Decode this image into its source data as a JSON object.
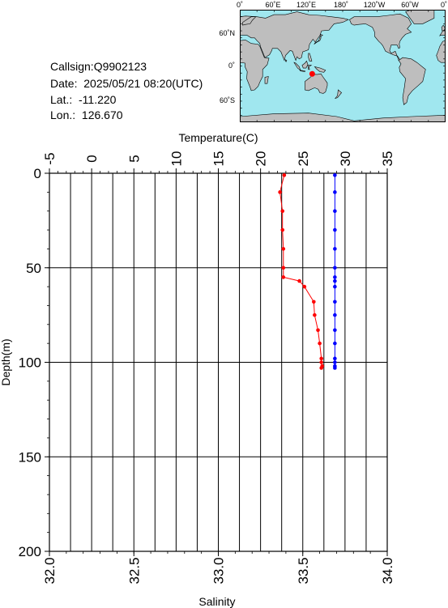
{
  "info": {
    "callsign": "Callsign:Q9902123",
    "date": "Date:  2025/05/21 08:20(UTC)",
    "lat": "Lat.:  -11.220",
    "lon": "Lon.:  126.670"
  },
  "map": {
    "top_labels": [
      "0˚",
      "60˚E",
      "120˚E",
      "180˚",
      "120˚W",
      "60˚W",
      "0˚"
    ],
    "left_labels": [
      "60˚N",
      "0˚",
      "60˚S"
    ],
    "marker_lon": 126.67,
    "marker_lat": -11.22,
    "colors": {
      "ocean": "#a0e7ef",
      "land": "#bebebe",
      "marker": "#ff0000"
    }
  },
  "chart_data": {
    "type": "line",
    "title": "",
    "temperature_axis": {
      "label": "Temperature(C)",
      "range": [
        -5,
        35
      ],
      "ticks": [
        "-5",
        "0",
        "5",
        "10",
        "15",
        "20",
        "25",
        "30",
        "35"
      ]
    },
    "salinity_axis": {
      "label": "Salinity",
      "range": [
        32.0,
        34.0
      ],
      "ticks": [
        "32.0",
        "32.5",
        "33.0",
        "33.5",
        "34.0"
      ]
    },
    "depth_axis": {
      "label": "Depth(m)",
      "range": [
        0,
        200
      ],
      "ticks": [
        "0",
        "50",
        "100",
        "150",
        "200"
      ]
    },
    "grid": true,
    "series": [
      {
        "axis": "temperature",
        "color": "#ff0000",
        "points": [
          {
            "x": 22.8,
            "depth": 1
          },
          {
            "x": 22.3,
            "depth": 10
          },
          {
            "x": 22.6,
            "depth": 20
          },
          {
            "x": 22.6,
            "depth": 30
          },
          {
            "x": 22.7,
            "depth": 40
          },
          {
            "x": 22.7,
            "depth": 50
          },
          {
            "x": 22.7,
            "depth": 55
          },
          {
            "x": 24.6,
            "depth": 57
          },
          {
            "x": 25.2,
            "depth": 60
          },
          {
            "x": 26.3,
            "depth": 68
          },
          {
            "x": 26.4,
            "depth": 75
          },
          {
            "x": 26.8,
            "depth": 83
          },
          {
            "x": 27.0,
            "depth": 90
          },
          {
            "x": 27.2,
            "depth": 98
          },
          {
            "x": 27.2,
            "depth": 100
          },
          {
            "x": 27.3,
            "depth": 102
          },
          {
            "x": 27.2,
            "depth": 103
          }
        ]
      },
      {
        "axis": "salinity",
        "color": "#0000ff",
        "points": [
          {
            "x": 33.69,
            "depth": 1
          },
          {
            "x": 33.69,
            "depth": 10
          },
          {
            "x": 33.69,
            "depth": 20
          },
          {
            "x": 33.69,
            "depth": 30
          },
          {
            "x": 33.69,
            "depth": 40
          },
          {
            "x": 33.69,
            "depth": 50
          },
          {
            "x": 33.69,
            "depth": 55
          },
          {
            "x": 33.69,
            "depth": 57
          },
          {
            "x": 33.69,
            "depth": 60
          },
          {
            "x": 33.69,
            "depth": 68
          },
          {
            "x": 33.69,
            "depth": 75
          },
          {
            "x": 33.69,
            "depth": 83
          },
          {
            "x": 33.69,
            "depth": 90
          },
          {
            "x": 33.69,
            "depth": 98
          },
          {
            "x": 33.69,
            "depth": 100
          },
          {
            "x": 33.69,
            "depth": 102
          },
          {
            "x": 33.69,
            "depth": 103
          }
        ]
      }
    ]
  }
}
